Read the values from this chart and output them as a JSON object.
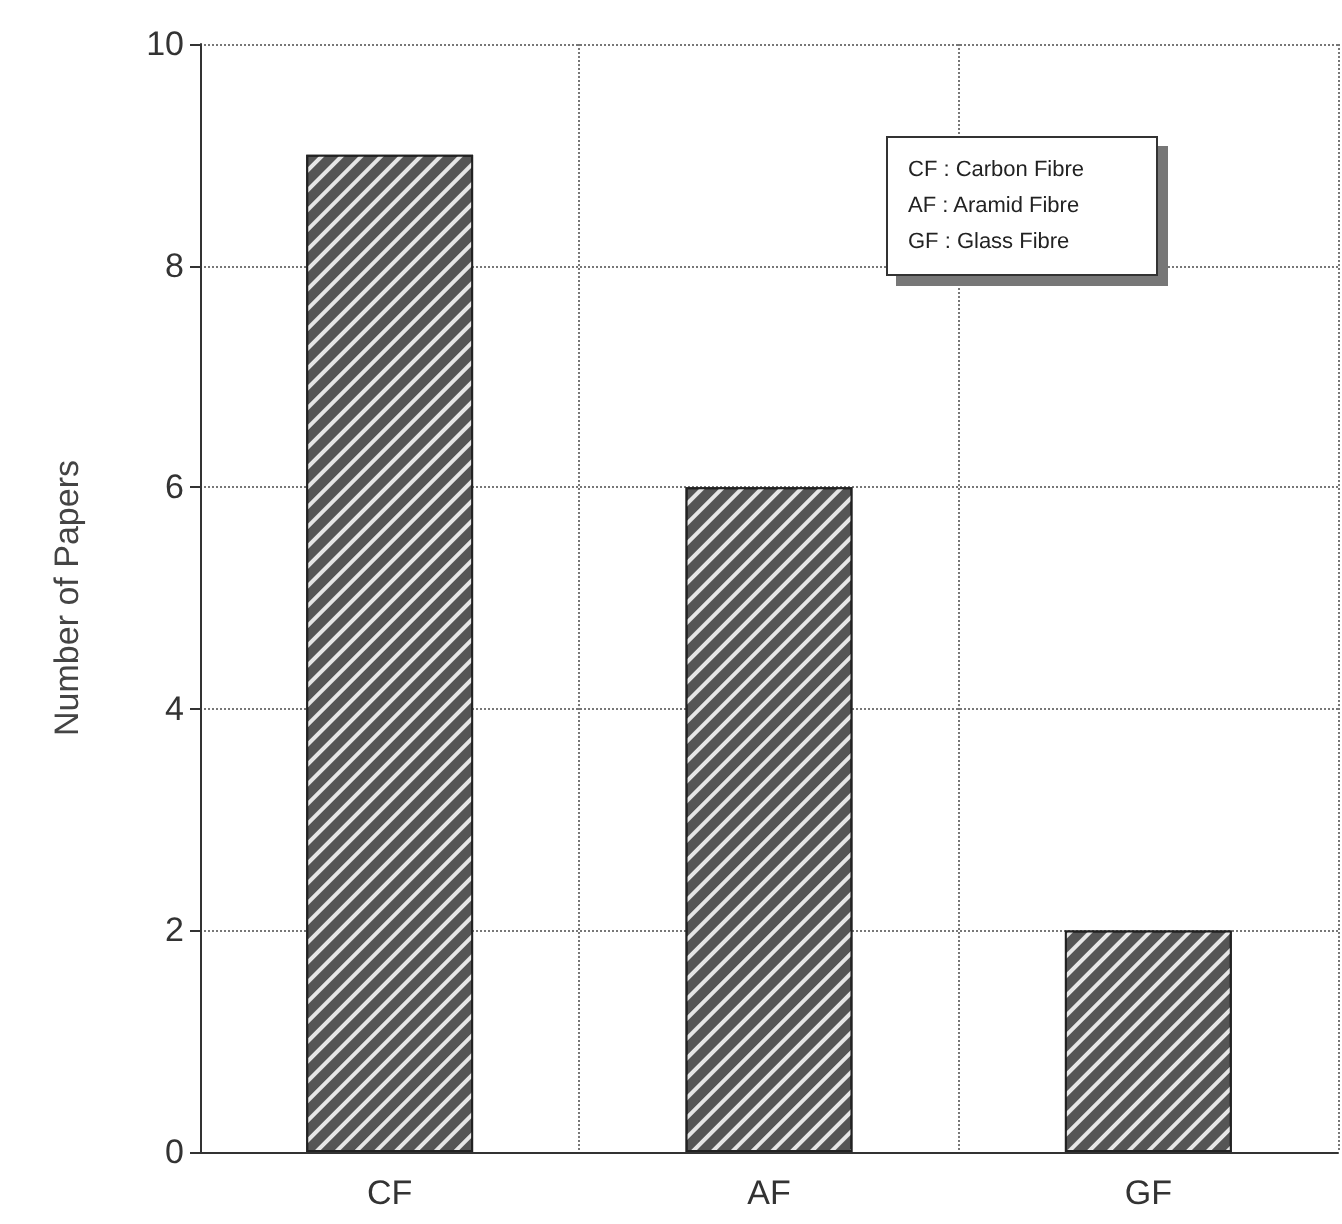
{
  "chart_data": {
    "type": "bar",
    "categories": [
      "CF",
      "AF",
      "GF"
    ],
    "values": [
      9,
      6,
      2
    ],
    "color": "#555555",
    "ylabel": "Number of Papers",
    "ylim": [
      0,
      10
    ],
    "yticks": [
      0,
      2,
      4,
      6,
      8,
      10
    ],
    "grid": true,
    "annotations": [
      "CF :  Carbon Fibre",
      "AF :  Aramid Fibre",
      "GF :  Glass Fibre"
    ]
  }
}
